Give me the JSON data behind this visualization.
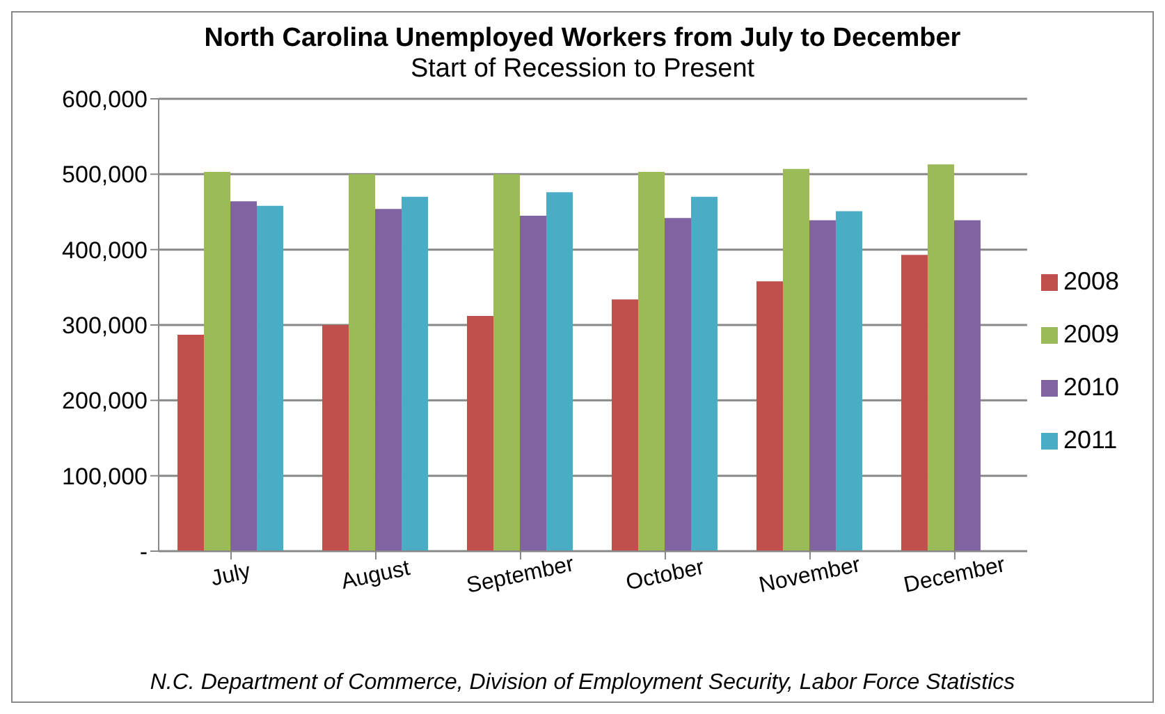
{
  "chart_data": {
    "type": "bar",
    "title": "North Carolina Unemployed Workers from July  to December",
    "subtitle": "Start of Recession to Present",
    "categories": [
      "July",
      "August",
      "September",
      "October",
      "November",
      "December"
    ],
    "series": [
      {
        "name": "2008",
        "color": "#c0504d",
        "values": [
          287000,
          300000,
          312000,
          334000,
          358000,
          393000
        ]
      },
      {
        "name": "2009",
        "color": "#9bbb59",
        "values": [
          503000,
          500000,
          500000,
          503000,
          507000,
          513000
        ]
      },
      {
        "name": "2010",
        "color": "#8064a2",
        "values": [
          464000,
          454000,
          445000,
          442000,
          439000,
          439000
        ]
      },
      {
        "name": "2011",
        "color": "#4bacc6",
        "values": [
          458000,
          470000,
          476000,
          470000,
          451000,
          null
        ]
      }
    ],
    "ylim": [
      0,
      600000
    ],
    "yticks": [
      {
        "value": 0,
        "label": "-"
      },
      {
        "value": 100000,
        "label": "100,000"
      },
      {
        "value": 200000,
        "label": "200,000"
      },
      {
        "value": 300000,
        "label": "300,000"
      },
      {
        "value": 400000,
        "label": "400,000"
      },
      {
        "value": 500000,
        "label": "500,000"
      },
      {
        "value": 600000,
        "label": "600,000"
      }
    ],
    "grid": "y",
    "legend": "right",
    "annotations": [
      "N.C. Department of Commerce, Division of Employment Security, Labor Force Statistics"
    ]
  }
}
